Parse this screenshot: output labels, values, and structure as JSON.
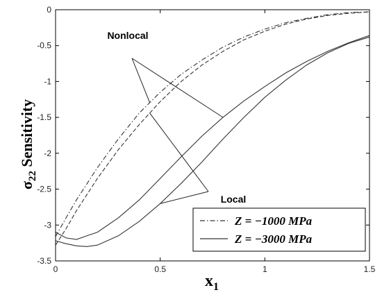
{
  "chart_data": {
    "type": "line",
    "xlabel": "x",
    "xlabel_sub": "1",
    "ylabel": "σ",
    "ylabel_sub": "22",
    "ylabel_rest": " Sensitivity",
    "xlim": [
      0,
      1.5
    ],
    "ylim": [
      -3.5,
      0
    ],
    "xticks": [
      {
        "value": 0,
        "label": "0"
      },
      {
        "value": 0.5,
        "label": "0.5"
      },
      {
        "value": 1,
        "label": "1"
      },
      {
        "value": 1.5,
        "label": "1.5"
      }
    ],
    "yticks": [
      {
        "value": 0,
        "label": "0"
      },
      {
        "value": -0.5,
        "label": "-0.5"
      },
      {
        "value": -1,
        "label": "-1"
      },
      {
        "value": -1.5,
        "label": "-1.5"
      },
      {
        "value": -2,
        "label": "-2"
      },
      {
        "value": -2.5,
        "label": "-2.5"
      },
      {
        "value": -3,
        "label": "-3"
      },
      {
        "value": -3.5,
        "label": "-3.5"
      }
    ],
    "grid": false,
    "legend_position": "bottom-right",
    "annotations": [
      {
        "text": "Nonlocal",
        "target": "upper curves (nonlocal)"
      },
      {
        "text": "Local",
        "target": "lower curves (local)"
      }
    ],
    "series": [
      {
        "name": "Z = −1000 MPa",
        "model": "nonlocal",
        "style": "dashdot",
        "x": [
          0,
          0.05,
          0.1,
          0.2,
          0.3,
          0.4,
          0.5,
          0.6,
          0.7,
          0.8,
          0.9,
          1.0,
          1.1,
          1.2,
          1.3,
          1.4,
          1.5
        ],
        "y": [
          -3.16,
          -2.9,
          -2.65,
          -2.2,
          -1.8,
          -1.44,
          -1.15,
          -0.9,
          -0.7,
          -0.52,
          -0.38,
          -0.27,
          -0.18,
          -0.12,
          -0.07,
          -0.04,
          -0.03
        ]
      },
      {
        "name": "Z = −1000 MPa",
        "model": "local",
        "style": "dashed",
        "x": [
          0,
          0.05,
          0.1,
          0.2,
          0.3,
          0.4,
          0.5,
          0.6,
          0.7,
          0.8,
          0.9,
          1.0,
          1.1,
          1.2,
          1.3,
          1.4,
          1.5
        ],
        "y": [
          -3.28,
          -3.05,
          -2.8,
          -2.35,
          -1.95,
          -1.6,
          -1.28,
          -1.0,
          -0.77,
          -0.58,
          -0.42,
          -0.3,
          -0.2,
          -0.13,
          -0.08,
          -0.05,
          -0.03
        ]
      },
      {
        "name": "Z = −3000 MPa",
        "model": "nonlocal",
        "style": "solid",
        "x": [
          0,
          0.05,
          0.1,
          0.2,
          0.3,
          0.4,
          0.5,
          0.6,
          0.7,
          0.8,
          0.9,
          1.0,
          1.1,
          1.2,
          1.3,
          1.4,
          1.5
        ],
        "y": [
          -3.1,
          -3.18,
          -3.2,
          -3.1,
          -2.9,
          -2.65,
          -2.35,
          -2.05,
          -1.76,
          -1.5,
          -1.27,
          -1.07,
          -0.88,
          -0.72,
          -0.58,
          -0.46,
          -0.36
        ]
      },
      {
        "name": "Z = −3000 MPa",
        "model": "local",
        "style": "solid",
        "x": [
          0,
          0.05,
          0.1,
          0.15,
          0.2,
          0.3,
          0.4,
          0.5,
          0.6,
          0.7,
          0.8,
          0.9,
          1.0,
          1.1,
          1.2,
          1.3,
          1.4,
          1.5
        ],
        "y": [
          -3.22,
          -3.26,
          -3.29,
          -3.3,
          -3.28,
          -3.15,
          -2.95,
          -2.7,
          -2.42,
          -2.12,
          -1.8,
          -1.5,
          -1.22,
          -0.98,
          -0.77,
          -0.6,
          -0.47,
          -0.38
        ]
      }
    ],
    "legend": [
      {
        "label": "Z = −1000 MPa",
        "style": "dashdot"
      },
      {
        "label": "Z = −3000 MPa",
        "style": "solid"
      }
    ]
  }
}
